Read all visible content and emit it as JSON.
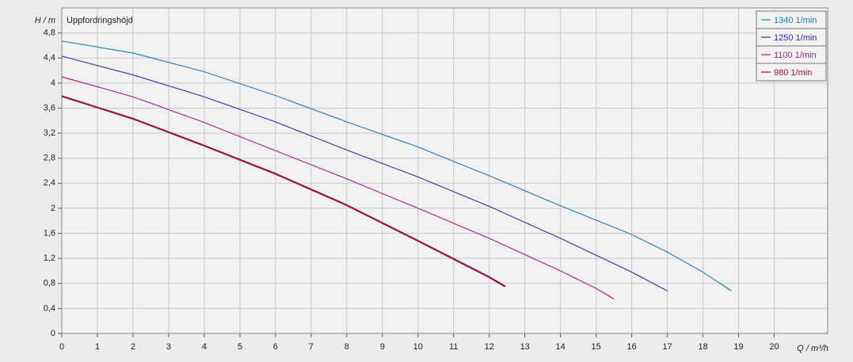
{
  "chart_data": {
    "type": "line",
    "y_label": "H / m",
    "annotation": "Uppfordringshöjd",
    "x_label": "Q / m³/h",
    "xlim": [
      0,
      21.5
    ],
    "xticks": [
      0,
      1,
      2,
      3,
      4,
      5,
      6,
      7,
      8,
      9,
      10,
      11,
      12,
      13,
      14,
      15,
      16,
      17,
      18,
      19,
      20
    ],
    "ylim": [
      0,
      5.2
    ],
    "yticks": [
      0,
      {
        "value": 0.4,
        "label": "0,4"
      },
      {
        "value": 0.8,
        "label": "0,8"
      },
      {
        "value": 1.2,
        "label": "1,2"
      },
      {
        "value": 1.6,
        "label": "1,6"
      },
      2,
      {
        "value": 2.4,
        "label": "2,4"
      },
      {
        "value": 2.8,
        "label": "2,8"
      },
      {
        "value": 3.2,
        "label": "3,2"
      },
      {
        "value": 3.6,
        "label": "3,6"
      },
      4,
      {
        "value": 4.4,
        "label": "4,4"
      },
      {
        "value": 4.8,
        "label": "4,8"
      }
    ],
    "grid": true,
    "legend": "top-right",
    "series": [
      {
        "name": "1340 1/min",
        "color": "#1a7db8",
        "x": [
          0,
          2,
          4,
          6,
          8,
          10,
          12,
          14,
          16,
          17,
          18,
          18.8
        ],
        "values": [
          4.67,
          4.48,
          4.18,
          3.8,
          3.38,
          2.98,
          2.52,
          2.04,
          1.58,
          1.3,
          0.98,
          0.68
        ]
      },
      {
        "name": "1250 1/min",
        "color": "#3a2aa8",
        "x": [
          0,
          2,
          4,
          6,
          8,
          10,
          12,
          14,
          16,
          17
        ],
        "values": [
          4.43,
          4.13,
          3.78,
          3.38,
          2.93,
          2.5,
          2.03,
          1.52,
          0.98,
          0.68
        ]
      },
      {
        "name": "1100 1/min",
        "color": "#b0187f",
        "x": [
          0,
          2,
          4,
          6,
          8,
          10,
          12,
          14,
          15,
          15.5
        ],
        "values": [
          4.1,
          3.78,
          3.37,
          2.92,
          2.47,
          2.0,
          1.52,
          1.0,
          0.72,
          0.55
        ]
      },
      {
        "name": "980 1/min",
        "color": "#9a0f4a",
        "x": [
          0,
          2,
          4,
          6,
          8,
          10,
          12,
          12.45
        ],
        "values": [
          3.79,
          3.43,
          3.0,
          2.55,
          2.05,
          1.48,
          0.9,
          0.75
        ]
      }
    ]
  }
}
